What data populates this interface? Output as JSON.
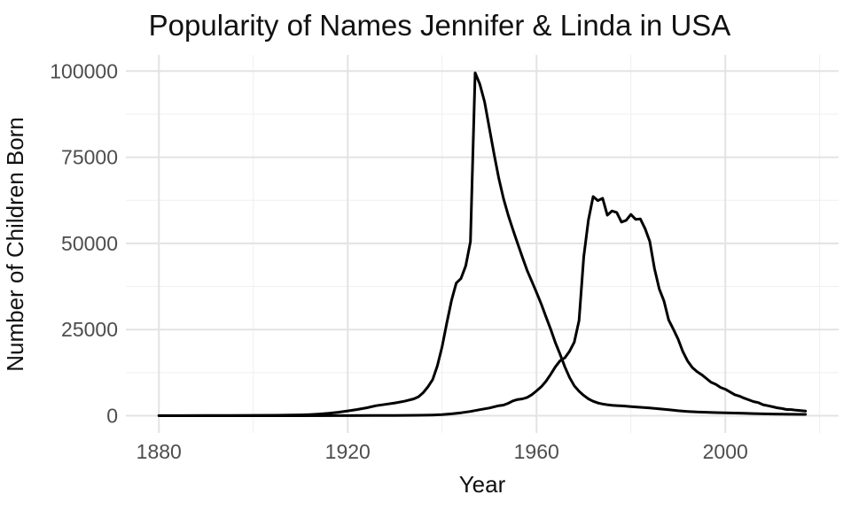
{
  "title": "Popularity of Names Jennifer & Linda in USA",
  "chart_data": {
    "type": "line",
    "title": "Popularity of Names Jennifer & Linda in USA",
    "xlabel": "Year",
    "ylabel": "Number of Children Born",
    "legend": "none",
    "grid": true,
    "line_color": "#000000",
    "grid_major_color": "#e3e3e3",
    "grid_minor_color": "#efefef",
    "axis_text_color": "#4d4d4d",
    "xlim": [
      1873,
      2024
    ],
    "ylim": [
      -5000,
      104700
    ],
    "x_data_range": [
      1880,
      2017
    ],
    "y_data_range": [
      0,
      99500
    ],
    "xticks": [
      {
        "value": 1880,
        "label": "1880"
      },
      {
        "value": 1920,
        "label": "1920"
      },
      {
        "value": 1960,
        "label": "1960"
      },
      {
        "value": 2000,
        "label": "2000"
      }
    ],
    "xticks_minor": [
      1900,
      1940,
      1980,
      2020
    ],
    "yticks": [
      {
        "value": 0,
        "label": "0"
      },
      {
        "value": 25000,
        "label": "25000"
      },
      {
        "value": 50000,
        "label": "50000"
      },
      {
        "value": 75000,
        "label": "75000"
      },
      {
        "value": 100000,
        "label": "100000"
      }
    ],
    "yticks_minor": [
      12500,
      37500,
      62500,
      87500
    ],
    "series": [
      {
        "name": "Linda",
        "peak": {
          "year": 1947,
          "value": 99500
        },
        "points": [
          [
            1880,
            30
          ],
          [
            1885,
            40
          ],
          [
            1890,
            55
          ],
          [
            1895,
            75
          ],
          [
            1900,
            100
          ],
          [
            1905,
            140
          ],
          [
            1908,
            190
          ],
          [
            1910,
            250
          ],
          [
            1912,
            350
          ],
          [
            1914,
            500
          ],
          [
            1916,
            700
          ],
          [
            1918,
            1000
          ],
          [
            1920,
            1400
          ],
          [
            1922,
            1800
          ],
          [
            1924,
            2300
          ],
          [
            1926,
            2900
          ],
          [
            1928,
            3300
          ],
          [
            1930,
            3700
          ],
          [
            1932,
            4200
          ],
          [
            1934,
            4900
          ],
          [
            1935,
            5500
          ],
          [
            1936,
            6700
          ],
          [
            1937,
            8400
          ],
          [
            1938,
            10500
          ],
          [
            1939,
            14500
          ],
          [
            1940,
            20000
          ],
          [
            1941,
            27000
          ],
          [
            1942,
            33500
          ],
          [
            1943,
            38500
          ],
          [
            1944,
            39800
          ],
          [
            1945,
            43500
          ],
          [
            1946,
            50500
          ],
          [
            1947,
            99500
          ],
          [
            1948,
            96200
          ],
          [
            1949,
            91000
          ],
          [
            1950,
            83500
          ],
          [
            1951,
            76000
          ],
          [
            1952,
            69000
          ],
          [
            1953,
            63000
          ],
          [
            1954,
            58200
          ],
          [
            1955,
            54000
          ],
          [
            1956,
            50000
          ],
          [
            1957,
            46000
          ],
          [
            1958,
            42200
          ],
          [
            1959,
            39000
          ],
          [
            1960,
            35800
          ],
          [
            1961,
            32400
          ],
          [
            1962,
            28700
          ],
          [
            1963,
            25100
          ],
          [
            1964,
            21200
          ],
          [
            1965,
            17800
          ],
          [
            1966,
            14200
          ],
          [
            1967,
            11100
          ],
          [
            1968,
            8700
          ],
          [
            1969,
            7100
          ],
          [
            1970,
            5900
          ],
          [
            1971,
            4900
          ],
          [
            1972,
            4200
          ],
          [
            1973,
            3700
          ],
          [
            1974,
            3400
          ],
          [
            1975,
            3200
          ],
          [
            1976,
            3050
          ],
          [
            1977,
            2950
          ],
          [
            1978,
            2850
          ],
          [
            1979,
            2750
          ],
          [
            1980,
            2650
          ],
          [
            1982,
            2450
          ],
          [
            1984,
            2250
          ],
          [
            1986,
            2000
          ],
          [
            1988,
            1750
          ],
          [
            1990,
            1450
          ],
          [
            1992,
            1250
          ],
          [
            1994,
            1100
          ],
          [
            1996,
            1000
          ],
          [
            1998,
            920
          ],
          [
            2000,
            860
          ],
          [
            2002,
            780
          ],
          [
            2004,
            700
          ],
          [
            2006,
            620
          ],
          [
            2008,
            550
          ],
          [
            2010,
            490
          ],
          [
            2012,
            450
          ],
          [
            2014,
            420
          ],
          [
            2016,
            400
          ],
          [
            2017,
            390
          ]
        ]
      },
      {
        "name": "Jennifer",
        "peak": {
          "year": 1972,
          "value": 63600
        },
        "points": [
          [
            1880,
            5
          ],
          [
            1900,
            8
          ],
          [
            1910,
            15
          ],
          [
            1920,
            40
          ],
          [
            1925,
            60
          ],
          [
            1930,
            90
          ],
          [
            1935,
            150
          ],
          [
            1938,
            220
          ],
          [
            1940,
            320
          ],
          [
            1942,
            550
          ],
          [
            1944,
            850
          ],
          [
            1946,
            1250
          ],
          [
            1948,
            1750
          ],
          [
            1950,
            2250
          ],
          [
            1952,
            2900
          ],
          [
            1953,
            3100
          ],
          [
            1954,
            3600
          ],
          [
            1955,
            4300
          ],
          [
            1956,
            4700
          ],
          [
            1957,
            4900
          ],
          [
            1958,
            5300
          ],
          [
            1959,
            6100
          ],
          [
            1960,
            7200
          ],
          [
            1961,
            8400
          ],
          [
            1962,
            10000
          ],
          [
            1963,
            12000
          ],
          [
            1964,
            14200
          ],
          [
            1965,
            16000
          ],
          [
            1966,
            16800
          ],
          [
            1967,
            18700
          ],
          [
            1968,
            21300
          ],
          [
            1969,
            27600
          ],
          [
            1970,
            46100
          ],
          [
            1971,
            56800
          ],
          [
            1972,
            63600
          ],
          [
            1973,
            62400
          ],
          [
            1974,
            63100
          ],
          [
            1975,
            58200
          ],
          [
            1976,
            59400
          ],
          [
            1977,
            59000
          ],
          [
            1978,
            56200
          ],
          [
            1979,
            56700
          ],
          [
            1980,
            58400
          ],
          [
            1981,
            57000
          ],
          [
            1982,
            57100
          ],
          [
            1983,
            54300
          ],
          [
            1984,
            50600
          ],
          [
            1985,
            42700
          ],
          [
            1986,
            36800
          ],
          [
            1987,
            33300
          ],
          [
            1988,
            27800
          ],
          [
            1989,
            25100
          ],
          [
            1990,
            22200
          ],
          [
            1991,
            18600
          ],
          [
            1992,
            15900
          ],
          [
            1993,
            14000
          ],
          [
            1994,
            12800
          ],
          [
            1995,
            11900
          ],
          [
            1996,
            10800
          ],
          [
            1997,
            9700
          ],
          [
            1998,
            9100
          ],
          [
            1999,
            8200
          ],
          [
            2000,
            7700
          ],
          [
            2001,
            6900
          ],
          [
            2002,
            6100
          ],
          [
            2003,
            5700
          ],
          [
            2004,
            5100
          ],
          [
            2005,
            4600
          ],
          [
            2006,
            4100
          ],
          [
            2007,
            3800
          ],
          [
            2008,
            3200
          ],
          [
            2009,
            2900
          ],
          [
            2010,
            2600
          ],
          [
            2011,
            2300
          ],
          [
            2012,
            2100
          ],
          [
            2013,
            1800
          ],
          [
            2014,
            1780
          ],
          [
            2015,
            1600
          ],
          [
            2016,
            1480
          ],
          [
            2017,
            1370
          ]
        ]
      }
    ]
  }
}
